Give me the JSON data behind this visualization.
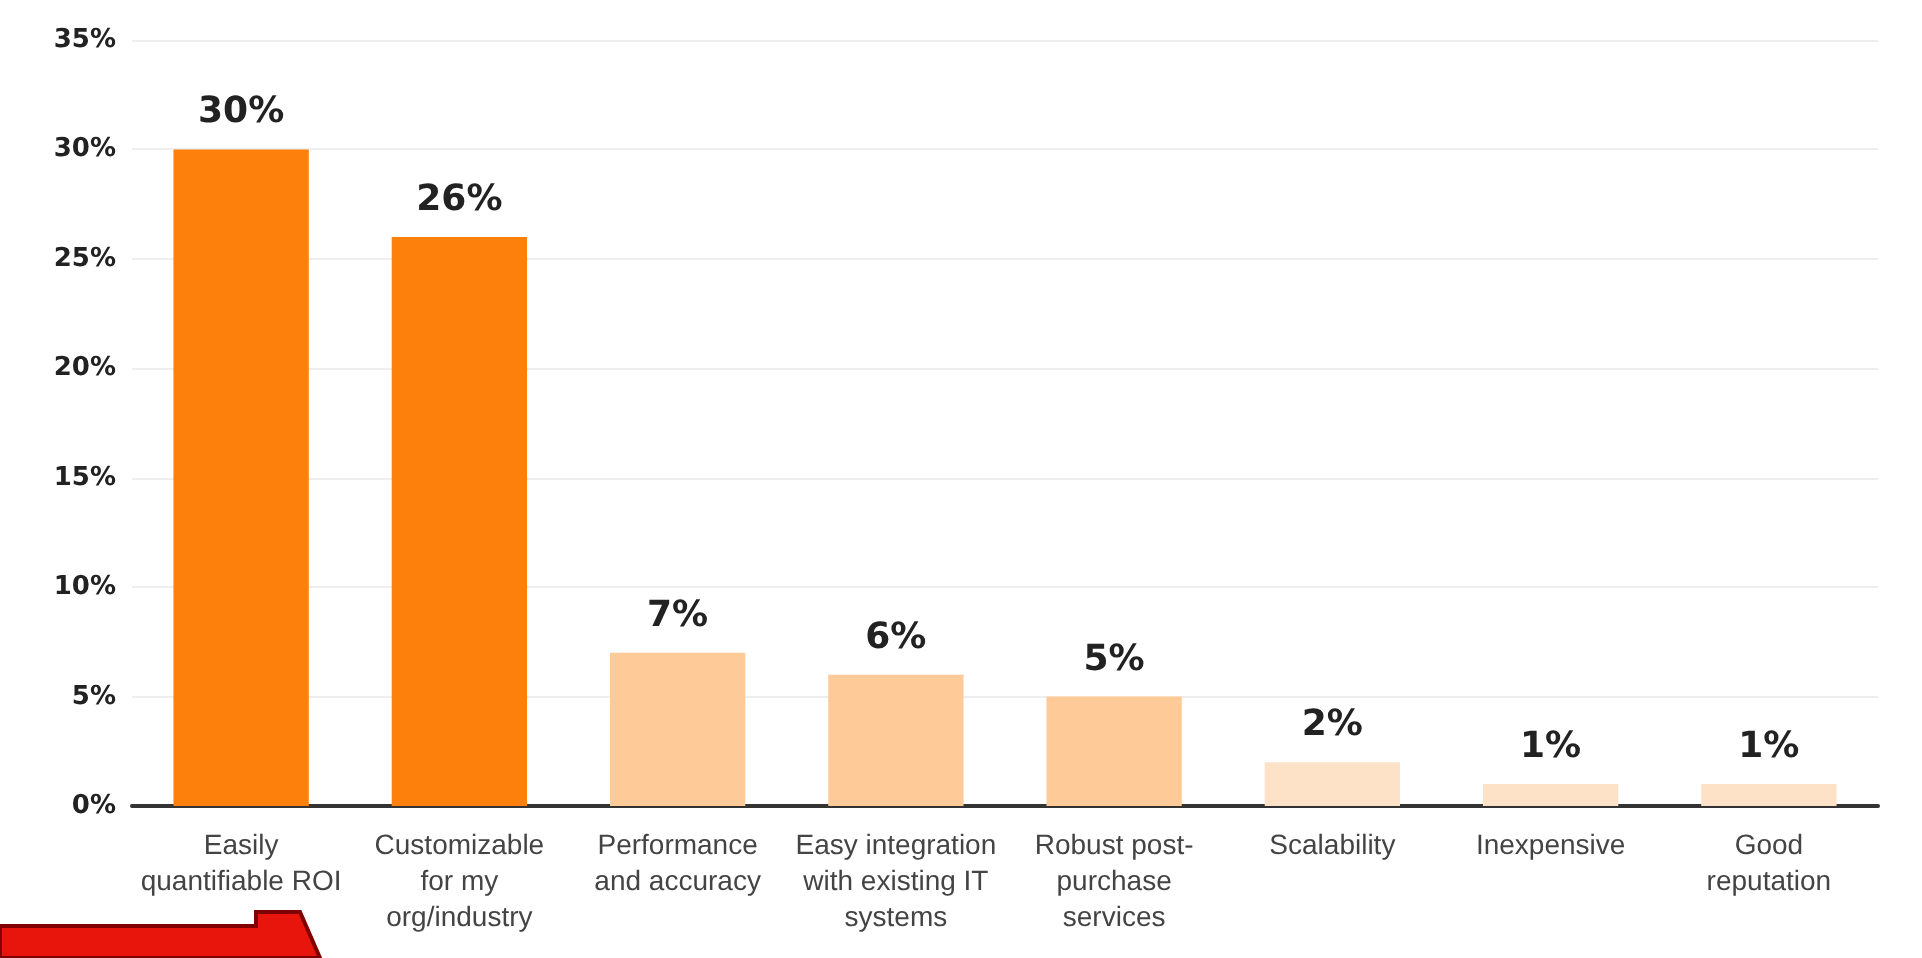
{
  "chart_data": {
    "type": "bar",
    "categories": [
      "Easily\nquantifiable ROI",
      "Customizable\nfor my\norg/industry",
      "Performance\nand accuracy",
      "Easy integration\nwith existing IT\nsystems",
      "Robust post-\npurchase\nservices",
      "Scalability",
      "Inexpensive",
      "Good\nreputation"
    ],
    "values": [
      30,
      26,
      7,
      6,
      5,
      2,
      1,
      1
    ],
    "colors": [
      "#fd7f0c",
      "#fd7f0c",
      "#fecb98",
      "#fecb98",
      "#fecb98",
      "#fde2c8",
      "#fde2c8",
      "#fde2c8"
    ],
    "value_labels": [
      "30%",
      "26%",
      "7%",
      "6%",
      "5%",
      "2%",
      "1%",
      "1%"
    ],
    "ylim": [
      0,
      35
    ],
    "yticks": [
      {
        "value": 0,
        "label": "0%"
      },
      {
        "value": 5,
        "label": "5%"
      },
      {
        "value": 10,
        "label": "10%"
      },
      {
        "value": 15,
        "label": "15%"
      },
      {
        "value": 20,
        "label": "20%"
      },
      {
        "value": 25,
        "label": "25%"
      },
      {
        "value": 30,
        "label": "30%"
      },
      {
        "value": 35,
        "label": "35%"
      }
    ],
    "grid": "y"
  }
}
